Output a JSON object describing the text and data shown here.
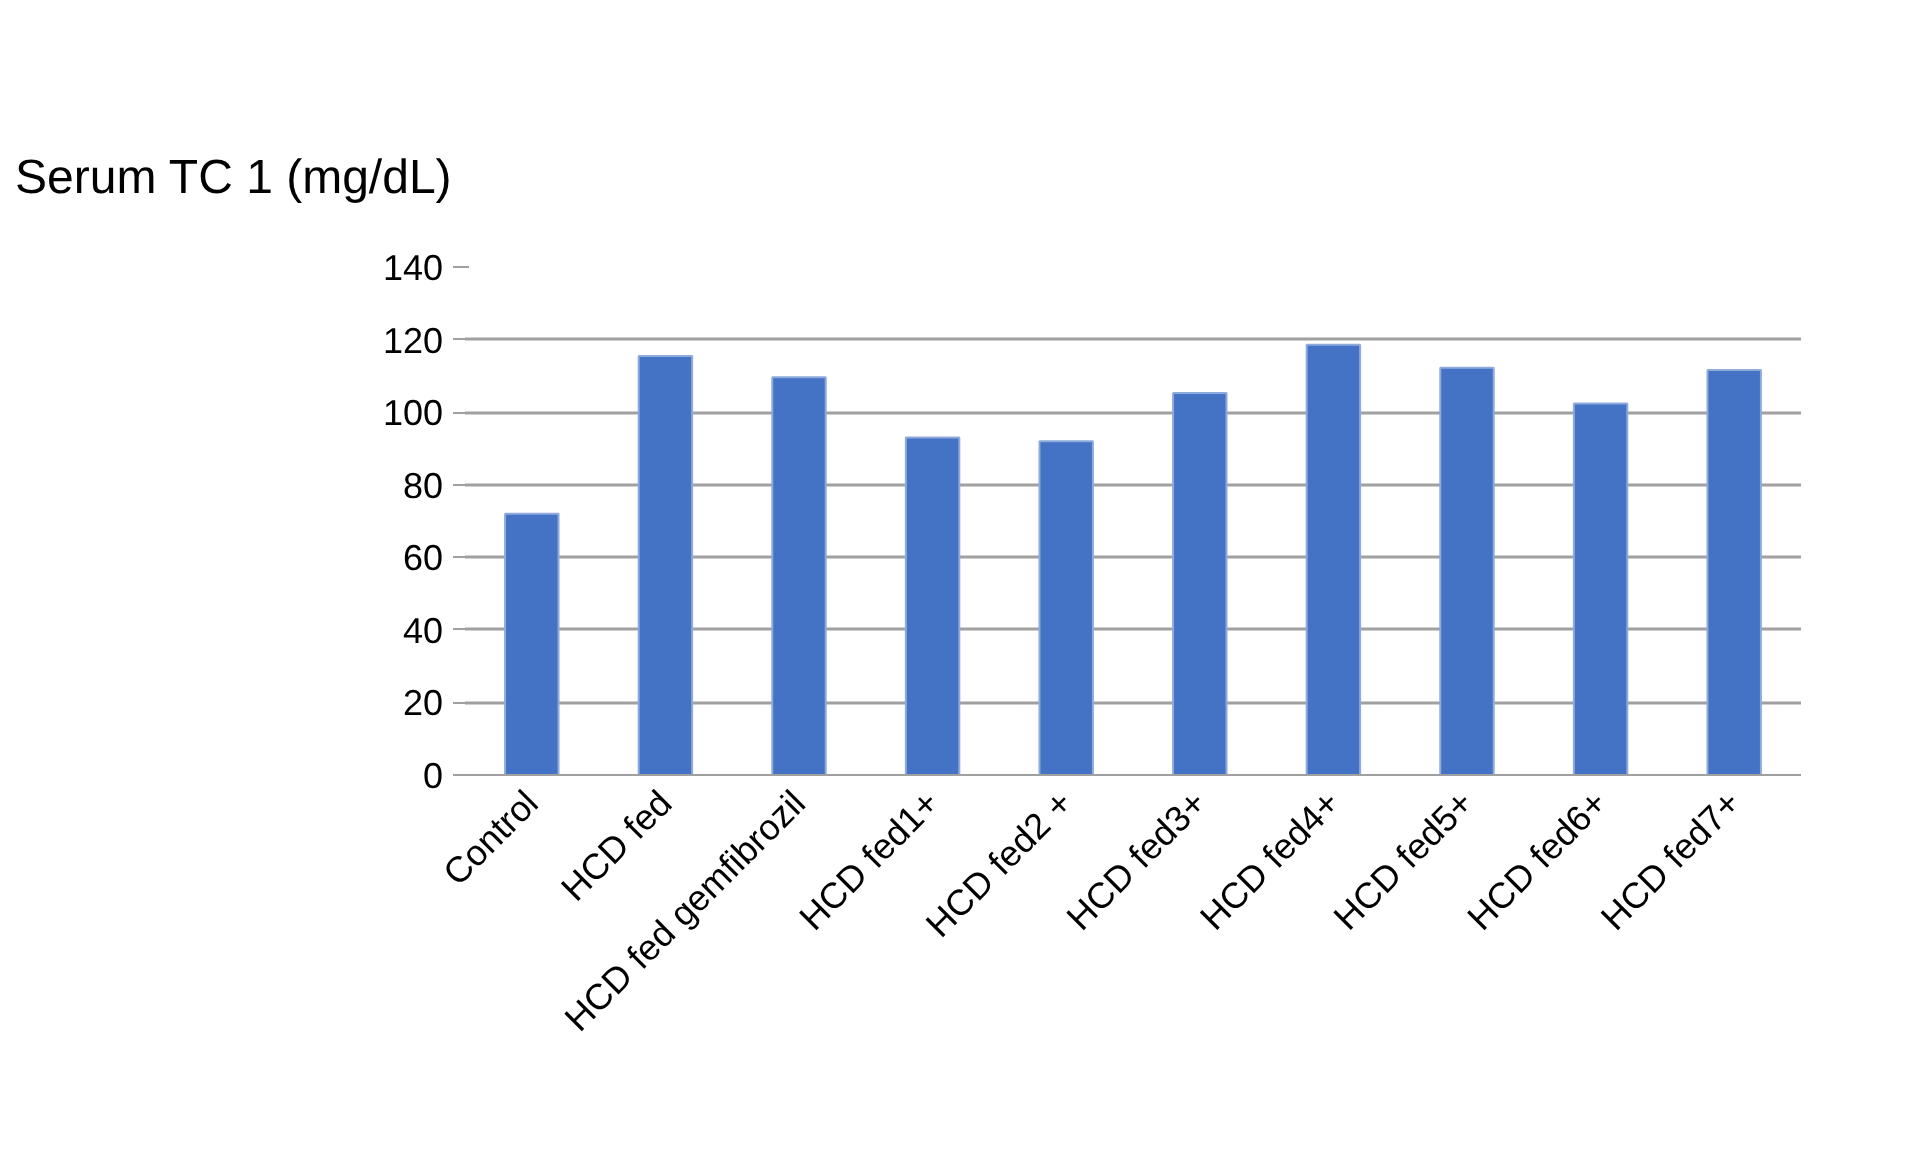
{
  "chart_data": {
    "type": "bar",
    "title": "Serum TC 1 (mg/dL)",
    "categories": [
      "Control",
      "HCD fed",
      "HCD fed gemfibrozil",
      "HCD fed1+",
      "HCD fed2 +",
      "HCD fed3+",
      "HCD fed4+",
      "HCD fed5+",
      "HCD fed6+",
      "HCD fed7+"
    ],
    "values": [
      72,
      115.5,
      109.6,
      93,
      92,
      105.3,
      118.6,
      112.2,
      102.4,
      111.6
    ],
    "color": "#4472c4",
    "ylim": [
      0,
      140
    ],
    "yticks": [
      0,
      20,
      40,
      60,
      80,
      100,
      120,
      140
    ],
    "grid": "y"
  }
}
